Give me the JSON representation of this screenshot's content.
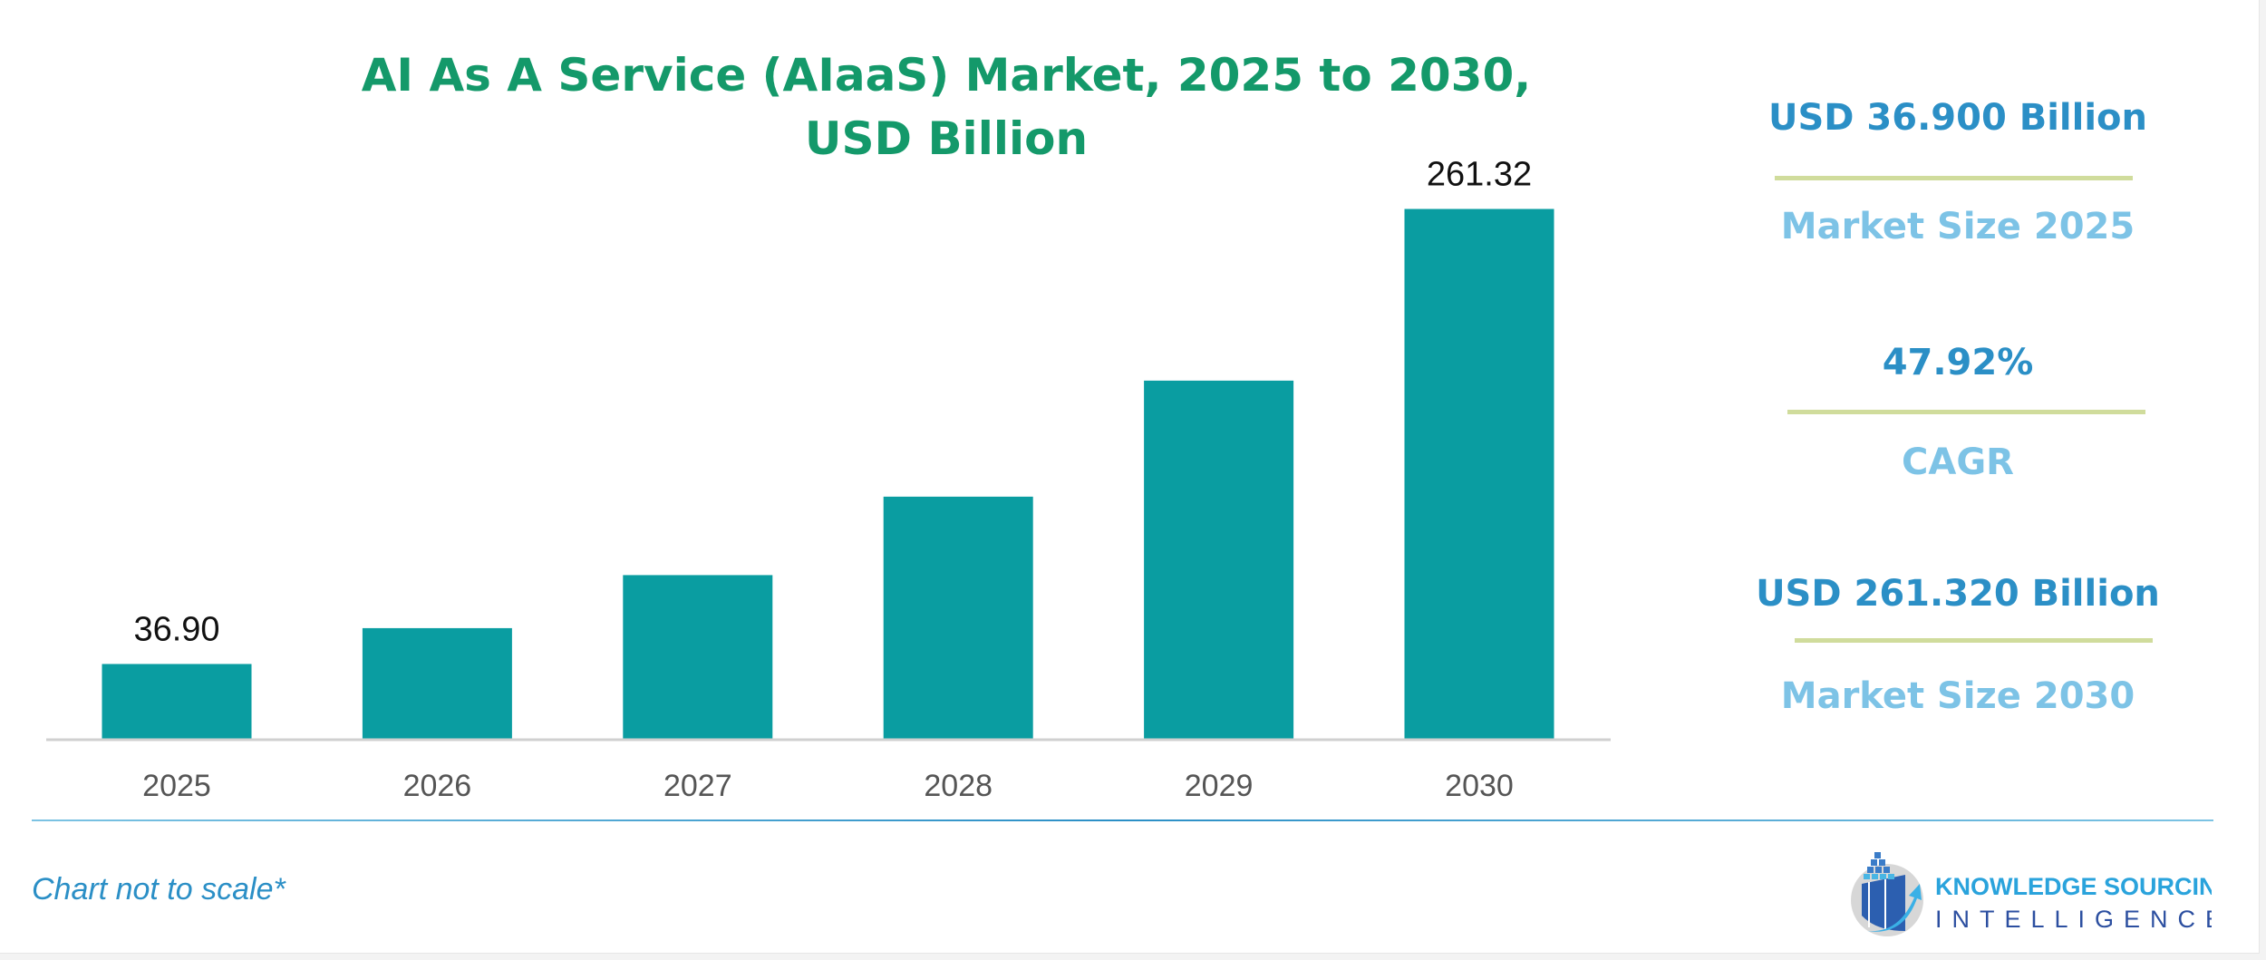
{
  "chart_data": {
    "type": "bar",
    "title": "AI As A Service (AIaaS) Market, 2025 to 2030, USD Billion",
    "title_lines": [
      "AI As A Service (AIaaS) Market, 2025 to 2030,",
      "USD Billion"
    ],
    "categories": [
      "2025",
      "2026",
      "2027",
      "2028",
      "2029",
      "2030"
    ],
    "values": [
      36.9,
      54.58,
      80.74,
      119.43,
      176.66,
      261.32
    ],
    "data_labels": [
      "36.90",
      "",
      "",
      "",
      "",
      "261.32"
    ],
    "xlabel": "",
    "ylabel": "",
    "ylim": [
      0,
      300
    ],
    "grid": false,
    "bar_color": "#0a9da1"
  },
  "kpis": [
    {
      "value": "USD 36.900 Billion",
      "label": "Market Size 2025"
    },
    {
      "value": "47.92%",
      "label": "CAGR"
    },
    {
      "value": "USD 261.320 Billion",
      "label": "Market Size 2030"
    }
  ],
  "footer": {
    "note": "Chart not to scale*",
    "logo_line1": "KNOWLEDGE SOURCING",
    "logo_line2": "INTELLIGENCE"
  },
  "colors": {
    "title": "#14996a",
    "kpi_value": "#2b8fc6",
    "kpi_label": "#7dc3e6",
    "separator": "#d0dc9c"
  }
}
